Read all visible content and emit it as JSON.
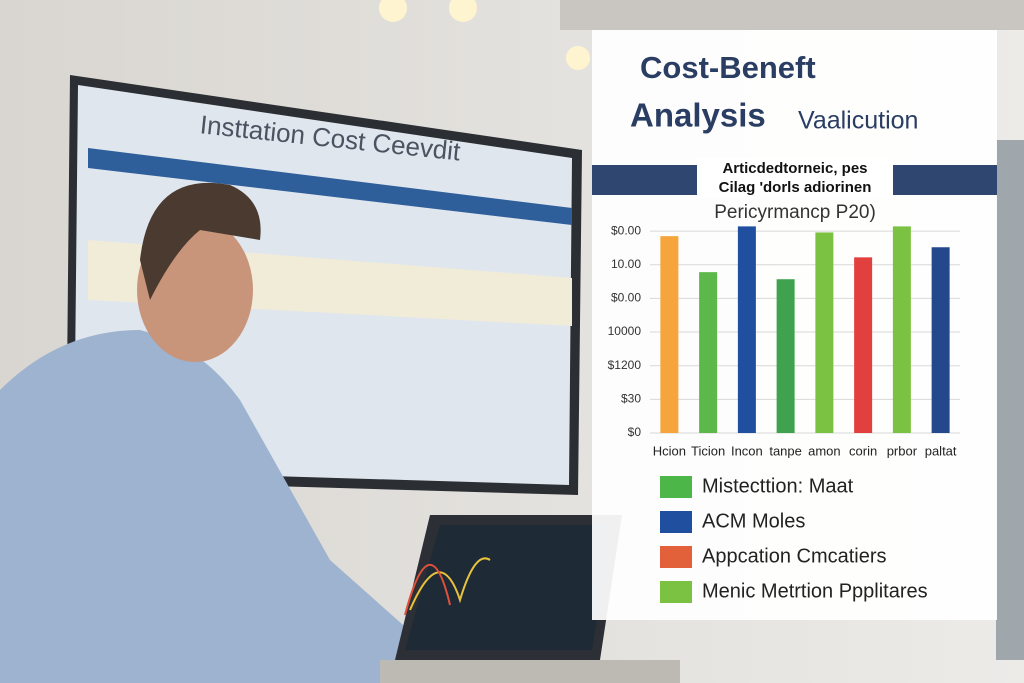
{
  "screen_title": "Insttation Cost Ceevdit",
  "chart_data": {
    "type": "bar",
    "title": [
      "Cost-Beneft",
      "Analysis"
    ],
    "title_suffix": "Vaalicution",
    "banner": [
      "Articdedtorneic, pes",
      "Cilag 'dorls adiorinen"
    ],
    "subtitle": "Pericyrmancp P20)",
    "categories": [
      "Hcion",
      "Ticion",
      "Incon",
      "tanpe",
      "amon",
      "corin",
      "prbor",
      "paltat"
    ],
    "values": [
      5.85,
      4.78,
      6.14,
      4.57,
      5.96,
      5.22,
      6.14,
      5.52
    ],
    "colors": [
      "#f5a53b",
      "#5cb84a",
      "#1f4f9e",
      "#3fa24f",
      "#7cc242",
      "#e2403f",
      "#7cc242",
      "#24488c"
    ],
    "ylim": [
      0,
      6.3
    ],
    "yticks": [
      {
        "value": 0,
        "label": "$0"
      },
      {
        "value": 1,
        "label": "$30"
      },
      {
        "value": 2,
        "label": "$1200"
      },
      {
        "value": 3,
        "label": "10000"
      },
      {
        "value": 4,
        "label": "$0.00"
      },
      {
        "value": 5,
        "label": "10.00"
      },
      {
        "value": 6,
        "label": "$0.00"
      }
    ],
    "grid": true,
    "legend": [
      {
        "name": "Mistecttion: Maat",
        "color": "#4cb648"
      },
      {
        "name": "ACM Moles",
        "color": "#1f4f9e"
      },
      {
        "name": "Appcation Cmcatiers",
        "color": "#e2603a"
      },
      {
        "name": "Menic Metrtion Ppplitares",
        "color": "#7cc242"
      }
    ]
  }
}
